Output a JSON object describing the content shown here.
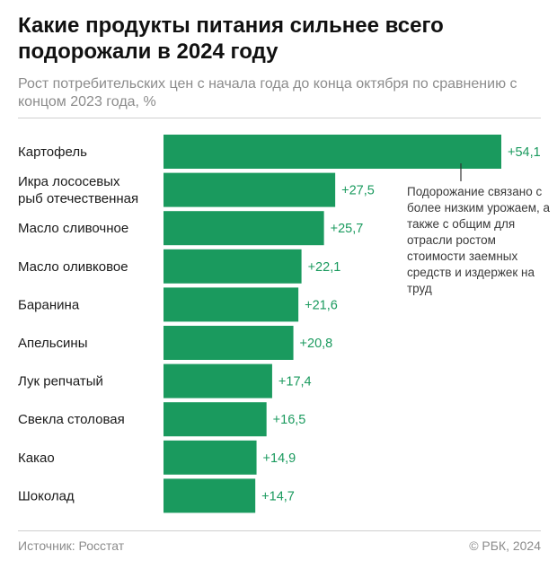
{
  "title": "Какие продукты питания сильнее всего подорожали в 2024 году",
  "subtitle": "Рост потребительских цен с начала года до конца октября по сравнению с концом 2023 года, %",
  "annotation": "Подорожание связано с более низким урожаем, а также с общим для отрасли ростом стоимости заемных средств и издержек на труд",
  "source": "Источник: Росстат",
  "copyright": "© РБК, 2024",
  "colors": {
    "bar": "#1a9a5e",
    "value_label": "#1a9a5e",
    "text": "#1a1a1a"
  },
  "chart_data": {
    "type": "bar",
    "orientation": "horizontal",
    "categories": [
      "Картофель",
      "Икра лососевых\nрыб отечественная",
      "Масло сливочное",
      "Масло оливковое",
      "Баранина",
      "Апельсины",
      "Лук репчатый",
      "Свекла столовая",
      "Какао",
      "Шоколад"
    ],
    "values": [
      54.1,
      27.5,
      25.7,
      22.1,
      21.6,
      20.8,
      17.4,
      16.5,
      14.9,
      14.7
    ],
    "value_labels": [
      "+54,1",
      "+27,5",
      "+25,7",
      "+22,1",
      "+21,6",
      "+20,8",
      "+17,4",
      "+16,5",
      "+14,9",
      "+14,7"
    ],
    "xlim": [
      0,
      54.1
    ],
    "grid": false
  }
}
